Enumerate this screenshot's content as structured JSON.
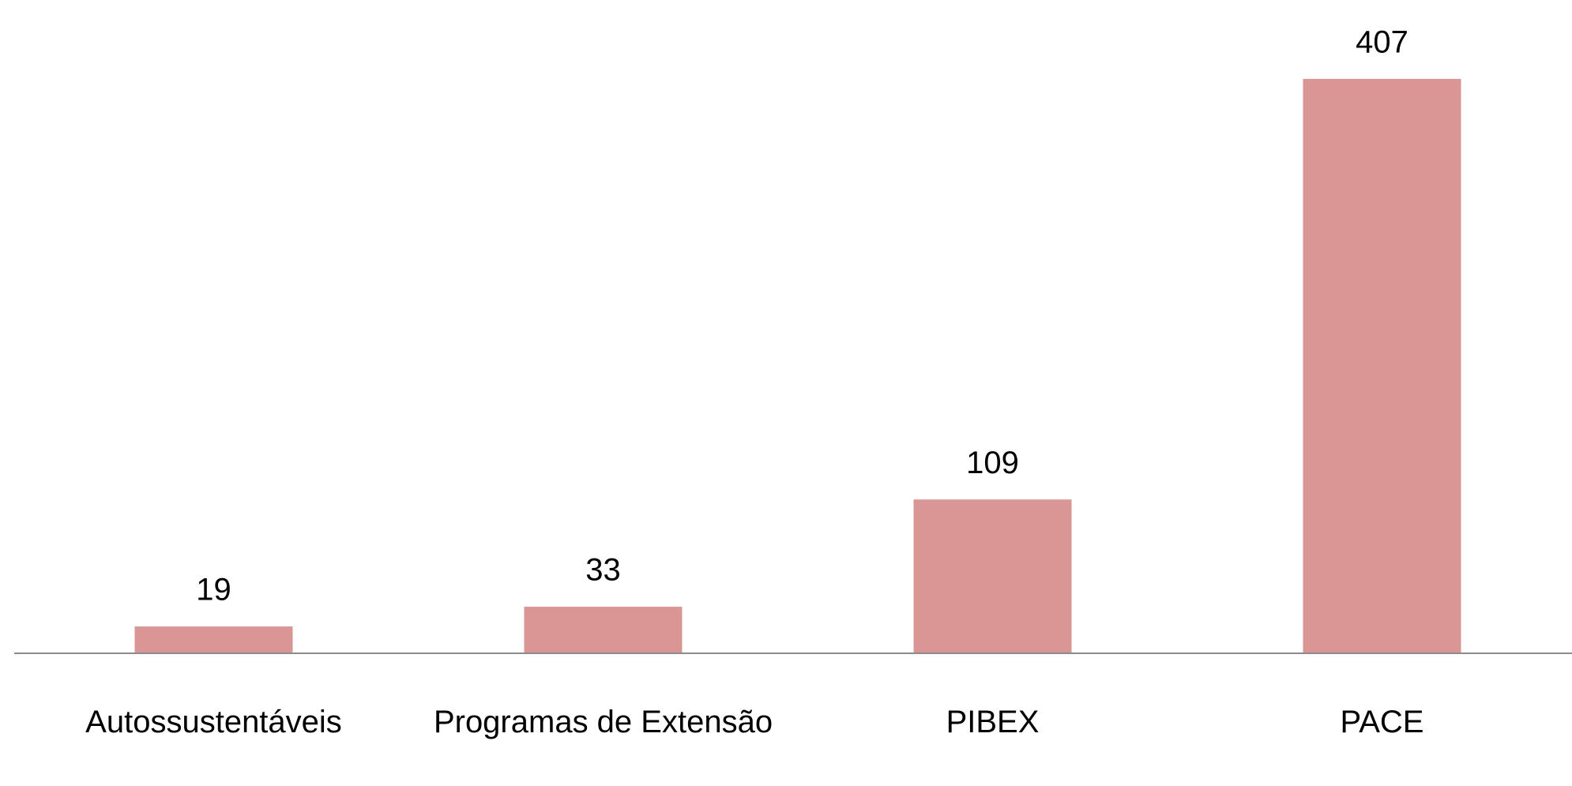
{
  "chart_data": {
    "type": "bar",
    "categories": [
      "Autossustentáveis",
      "Programas de Extensão",
      "PIBEX",
      "PACE"
    ],
    "values": [
      19,
      33,
      109,
      407
    ],
    "color": "#d99694",
    "ylim": [
      0,
      450
    ]
  }
}
